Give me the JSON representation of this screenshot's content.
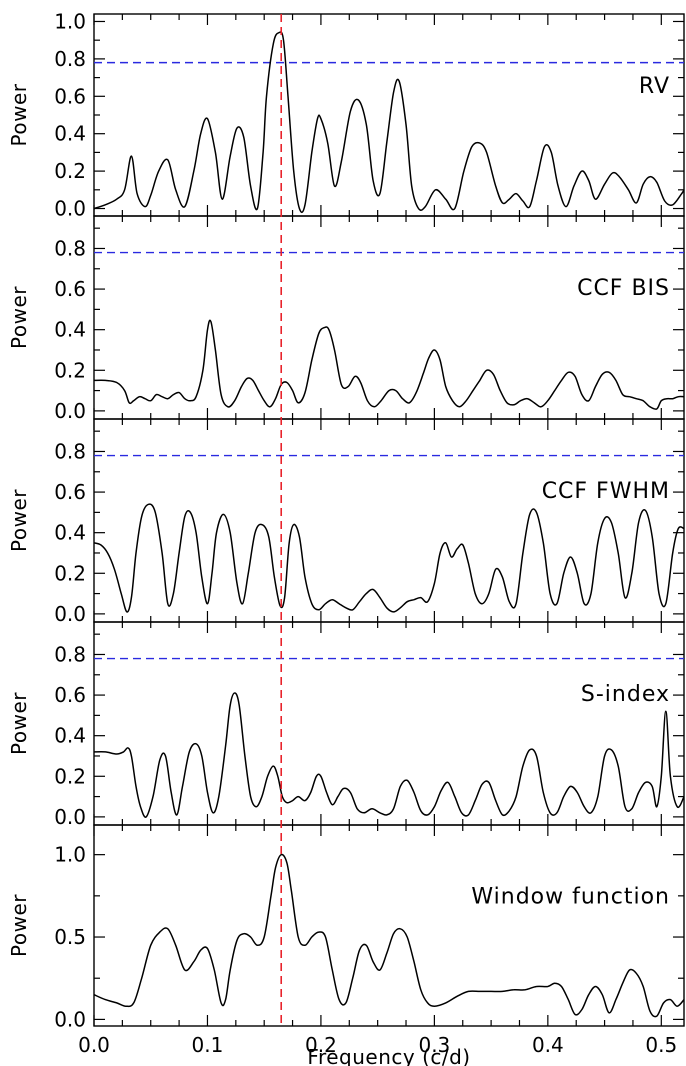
{
  "chart_data": {
    "type": "line",
    "xlabel": "Frequency (c/d)",
    "xlim": [
      0,
      0.52
    ],
    "x_ticks": [
      "0.0",
      "0.1",
      "0.2",
      "0.3",
      "0.4",
      "0.5"
    ],
    "x_tick_values": [
      0,
      0.1,
      0.2,
      0.3,
      0.4,
      0.5
    ],
    "reference_line_x": 0.165,
    "reference_line_color": "#e8232b",
    "threshold_color": "#2a2ae0",
    "line_color": "#000000",
    "panels": [
      {
        "label": "RV",
        "ylabel": "Power",
        "ylim": [
          -0.04,
          1.04
        ],
        "y_ticks": [
          "0.0",
          "0.2",
          "0.4",
          "0.6",
          "0.8",
          "1.0"
        ],
        "y_tick_values": [
          0,
          0.2,
          0.4,
          0.6,
          0.8,
          1.0
        ],
        "threshold": 0.78,
        "x": [
          0,
          0.01,
          0.02,
          0.027,
          0.033,
          0.038,
          0.045,
          0.05,
          0.057,
          0.065,
          0.072,
          0.08,
          0.088,
          0.094,
          0.1,
          0.107,
          0.113,
          0.12,
          0.126,
          0.132,
          0.138,
          0.144,
          0.149,
          0.152,
          0.158,
          0.163,
          0.167,
          0.171,
          0.176,
          0.181,
          0.186,
          0.192,
          0.197,
          0.2,
          0.206,
          0.212,
          0.218,
          0.226,
          0.233,
          0.24,
          0.246,
          0.252,
          0.258,
          0.264,
          0.269,
          0.275,
          0.28,
          0.286,
          0.292,
          0.301,
          0.31,
          0.318,
          0.326,
          0.333,
          0.34,
          0.346,
          0.354,
          0.36,
          0.366,
          0.372,
          0.378,
          0.384,
          0.39,
          0.397,
          0.403,
          0.409,
          0.416,
          0.423,
          0.43,
          0.436,
          0.442,
          0.45,
          0.457,
          0.463,
          0.471,
          0.478,
          0.484,
          0.49,
          0.496,
          0.503,
          0.51,
          0.518,
          0.52
        ],
        "y": [
          0.0,
          0.02,
          0.05,
          0.1,
          0.28,
          0.08,
          0.01,
          0.07,
          0.2,
          0.26,
          0.1,
          0.01,
          0.2,
          0.4,
          0.48,
          0.3,
          0.05,
          0.28,
          0.43,
          0.38,
          0.12,
          0.0,
          0.3,
          0.6,
          0.88,
          0.94,
          0.9,
          0.6,
          0.2,
          0.0,
          0.02,
          0.3,
          0.48,
          0.48,
          0.35,
          0.12,
          0.25,
          0.52,
          0.58,
          0.45,
          0.15,
          0.08,
          0.35,
          0.62,
          0.68,
          0.45,
          0.12,
          0.0,
          0.01,
          0.1,
          0.05,
          0.0,
          0.2,
          0.33,
          0.35,
          0.3,
          0.12,
          0.03,
          0.05,
          0.08,
          0.04,
          0.01,
          0.15,
          0.33,
          0.3,
          0.12,
          0.01,
          0.12,
          0.2,
          0.15,
          0.05,
          0.13,
          0.19,
          0.17,
          0.1,
          0.03,
          0.13,
          0.17,
          0.14,
          0.04,
          0.02,
          0.08,
          0.1
        ]
      },
      {
        "label": "CCF BIS",
        "ylabel": "Power",
        "ylim": [
          -0.04,
          0.96
        ],
        "y_ticks": [
          "0.0",
          "0.2",
          "0.4",
          "0.6",
          "0.8"
        ],
        "y_tick_values": [
          0,
          0.2,
          0.4,
          0.6,
          0.8
        ],
        "threshold": 0.78,
        "x": [
          0,
          0.01,
          0.02,
          0.027,
          0.031,
          0.035,
          0.04,
          0.045,
          0.05,
          0.055,
          0.06,
          0.065,
          0.07,
          0.075,
          0.08,
          0.085,
          0.09,
          0.096,
          0.1,
          0.103,
          0.107,
          0.112,
          0.118,
          0.124,
          0.13,
          0.135,
          0.14,
          0.145,
          0.15,
          0.155,
          0.16,
          0.165,
          0.17,
          0.175,
          0.18,
          0.186,
          0.192,
          0.198,
          0.203,
          0.207,
          0.212,
          0.218,
          0.224,
          0.23,
          0.235,
          0.241,
          0.247,
          0.253,
          0.26,
          0.266,
          0.272,
          0.278,
          0.284,
          0.29,
          0.295,
          0.3,
          0.305,
          0.31,
          0.316,
          0.322,
          0.328,
          0.334,
          0.34,
          0.346,
          0.352,
          0.358,
          0.364,
          0.37,
          0.376,
          0.382,
          0.388,
          0.394,
          0.4,
          0.406,
          0.412,
          0.418,
          0.424,
          0.43,
          0.436,
          0.442,
          0.448,
          0.454,
          0.46,
          0.466,
          0.472,
          0.478,
          0.484,
          0.49,
          0.496,
          0.5,
          0.505,
          0.51,
          0.515,
          0.52
        ],
        "y": [
          0.15,
          0.15,
          0.14,
          0.1,
          0.04,
          0.05,
          0.07,
          0.06,
          0.05,
          0.08,
          0.07,
          0.06,
          0.08,
          0.09,
          0.06,
          0.05,
          0.07,
          0.2,
          0.4,
          0.44,
          0.3,
          0.08,
          0.02,
          0.05,
          0.12,
          0.16,
          0.15,
          0.1,
          0.05,
          0.02,
          0.06,
          0.13,
          0.14,
          0.1,
          0.04,
          0.09,
          0.25,
          0.38,
          0.41,
          0.4,
          0.3,
          0.13,
          0.12,
          0.17,
          0.14,
          0.05,
          0.02,
          0.05,
          0.1,
          0.1,
          0.06,
          0.04,
          0.09,
          0.18,
          0.26,
          0.3,
          0.25,
          0.12,
          0.05,
          0.02,
          0.05,
          0.1,
          0.15,
          0.2,
          0.18,
          0.1,
          0.04,
          0.03,
          0.05,
          0.06,
          0.04,
          0.02,
          0.05,
          0.1,
          0.15,
          0.19,
          0.17,
          0.08,
          0.05,
          0.12,
          0.18,
          0.19,
          0.15,
          0.08,
          0.07,
          0.06,
          0.05,
          0.02,
          0.01,
          0.05,
          0.06,
          0.06,
          0.07,
          0.07
        ]
      },
      {
        "label": "CCF FWHM",
        "ylabel": "Power",
        "ylim": [
          -0.04,
          0.96
        ],
        "y_ticks": [
          "0.0",
          "0.2",
          "0.4",
          "0.6",
          "0.8"
        ],
        "y_tick_values": [
          0,
          0.2,
          0.4,
          0.6,
          0.8
        ],
        "threshold": 0.78,
        "x": [
          0,
          0.006,
          0.012,
          0.018,
          0.024,
          0.029,
          0.033,
          0.037,
          0.042,
          0.048,
          0.054,
          0.06,
          0.065,
          0.07,
          0.075,
          0.08,
          0.085,
          0.09,
          0.095,
          0.1,
          0.104,
          0.108,
          0.114,
          0.12,
          0.126,
          0.131,
          0.136,
          0.142,
          0.148,
          0.154,
          0.159,
          0.164,
          0.168,
          0.172,
          0.176,
          0.181,
          0.186,
          0.192,
          0.198,
          0.204,
          0.21,
          0.216,
          0.222,
          0.228,
          0.234,
          0.24,
          0.246,
          0.252,
          0.258,
          0.264,
          0.27,
          0.276,
          0.282,
          0.288,
          0.294,
          0.3,
          0.305,
          0.31,
          0.315,
          0.32,
          0.325,
          0.33,
          0.336,
          0.342,
          0.348,
          0.354,
          0.36,
          0.366,
          0.372,
          0.378,
          0.384,
          0.39,
          0.396,
          0.402,
          0.408,
          0.414,
          0.42,
          0.426,
          0.432,
          0.438,
          0.444,
          0.45,
          0.456,
          0.462,
          0.468,
          0.474,
          0.48,
          0.486,
          0.492,
          0.498,
          0.504,
          0.51,
          0.515,
          0.52
        ],
        "y": [
          0.35,
          0.34,
          0.3,
          0.22,
          0.1,
          0.01,
          0.08,
          0.3,
          0.48,
          0.54,
          0.5,
          0.3,
          0.05,
          0.1,
          0.3,
          0.48,
          0.5,
          0.4,
          0.18,
          0.05,
          0.2,
          0.4,
          0.49,
          0.4,
          0.15,
          0.05,
          0.2,
          0.4,
          0.44,
          0.38,
          0.18,
          0.04,
          0.08,
          0.35,
          0.44,
          0.38,
          0.18,
          0.05,
          0.02,
          0.05,
          0.07,
          0.05,
          0.03,
          0.02,
          0.06,
          0.1,
          0.12,
          0.08,
          0.03,
          0.01,
          0.03,
          0.06,
          0.07,
          0.08,
          0.06,
          0.15,
          0.3,
          0.35,
          0.28,
          0.32,
          0.34,
          0.25,
          0.1,
          0.05,
          0.1,
          0.22,
          0.18,
          0.06,
          0.05,
          0.3,
          0.49,
          0.5,
          0.35,
          0.1,
          0.05,
          0.2,
          0.28,
          0.2,
          0.05,
          0.1,
          0.35,
          0.47,
          0.45,
          0.3,
          0.08,
          0.2,
          0.45,
          0.51,
          0.38,
          0.1,
          0.05,
          0.3,
          0.42,
          0.42
        ]
      },
      {
        "label": "S-index",
        "ylabel": "Power",
        "ylim": [
          -0.04,
          0.96
        ],
        "y_ticks": [
          "0.0",
          "0.2",
          "0.4",
          "0.6",
          "0.8"
        ],
        "y_tick_values": [
          0,
          0.2,
          0.4,
          0.6,
          0.8
        ],
        "threshold": 0.78,
        "x": [
          0,
          0.01,
          0.02,
          0.026,
          0.03,
          0.033,
          0.037,
          0.041,
          0.046,
          0.052,
          0.058,
          0.063,
          0.068,
          0.073,
          0.078,
          0.084,
          0.09,
          0.095,
          0.1,
          0.105,
          0.11,
          0.116,
          0.12,
          0.124,
          0.128,
          0.133,
          0.138,
          0.143,
          0.148,
          0.153,
          0.158,
          0.162,
          0.166,
          0.17,
          0.175,
          0.18,
          0.186,
          0.191,
          0.196,
          0.2,
          0.205,
          0.21,
          0.215,
          0.22,
          0.226,
          0.232,
          0.238,
          0.245,
          0.252,
          0.258,
          0.264,
          0.27,
          0.276,
          0.282,
          0.288,
          0.294,
          0.3,
          0.306,
          0.312,
          0.318,
          0.324,
          0.33,
          0.336,
          0.342,
          0.348,
          0.354,
          0.36,
          0.366,
          0.372,
          0.378,
          0.384,
          0.39,
          0.396,
          0.402,
          0.408,
          0.414,
          0.42,
          0.426,
          0.432,
          0.438,
          0.444,
          0.45,
          0.456,
          0.462,
          0.468,
          0.474,
          0.48,
          0.486,
          0.492,
          0.496,
          0.5,
          0.504,
          0.508,
          0.514,
          0.52
        ],
        "y": [
          0.32,
          0.32,
          0.31,
          0.32,
          0.34,
          0.3,
          0.15,
          0.05,
          0.0,
          0.1,
          0.28,
          0.3,
          0.12,
          0.01,
          0.15,
          0.32,
          0.36,
          0.3,
          0.12,
          0.02,
          0.1,
          0.35,
          0.55,
          0.61,
          0.55,
          0.3,
          0.1,
          0.05,
          0.1,
          0.2,
          0.25,
          0.2,
          0.1,
          0.07,
          0.08,
          0.1,
          0.08,
          0.12,
          0.2,
          0.2,
          0.12,
          0.06,
          0.1,
          0.14,
          0.12,
          0.04,
          0.02,
          0.04,
          0.02,
          0.01,
          0.04,
          0.15,
          0.18,
          0.12,
          0.03,
          0.01,
          0.05,
          0.13,
          0.17,
          0.1,
          0.02,
          0.01,
          0.08,
          0.16,
          0.17,
          0.08,
          0.01,
          0.03,
          0.1,
          0.25,
          0.33,
          0.3,
          0.12,
          0.02,
          0.02,
          0.1,
          0.15,
          0.12,
          0.05,
          0.02,
          0.1,
          0.3,
          0.33,
          0.25,
          0.05,
          0.04,
          0.12,
          0.17,
          0.15,
          0.05,
          0.2,
          0.52,
          0.2,
          0.05,
          0.1
        ]
      },
      {
        "label": "Window function",
        "ylabel": "Power",
        "ylim": [
          -0.04,
          1.18
        ],
        "y_ticks": [
          "0.0",
          "0.5",
          "1.0"
        ],
        "y_tick_values": [
          0,
          0.5,
          1.0
        ],
        "x": [
          0,
          0.01,
          0.02,
          0.028,
          0.035,
          0.042,
          0.05,
          0.058,
          0.065,
          0.072,
          0.08,
          0.088,
          0.094,
          0.1,
          0.106,
          0.112,
          0.116,
          0.12,
          0.126,
          0.132,
          0.138,
          0.144,
          0.15,
          0.156,
          0.16,
          0.165,
          0.17,
          0.174,
          0.18,
          0.186,
          0.192,
          0.198,
          0.204,
          0.21,
          0.216,
          0.222,
          0.228,
          0.234,
          0.24,
          0.246,
          0.252,
          0.258,
          0.264,
          0.27,
          0.276,
          0.282,
          0.288,
          0.294,
          0.3,
          0.31,
          0.32,
          0.33,
          0.34,
          0.35,
          0.36,
          0.37,
          0.38,
          0.39,
          0.4,
          0.406,
          0.412,
          0.418,
          0.424,
          0.43,
          0.436,
          0.442,
          0.448,
          0.454,
          0.46,
          0.466,
          0.472,
          0.478,
          0.484,
          0.49,
          0.496,
          0.502,
          0.508,
          0.514,
          0.52
        ],
        "y": [
          0.15,
          0.12,
          0.1,
          0.08,
          0.1,
          0.25,
          0.45,
          0.53,
          0.55,
          0.45,
          0.3,
          0.35,
          0.42,
          0.43,
          0.3,
          0.1,
          0.12,
          0.3,
          0.48,
          0.52,
          0.5,
          0.45,
          0.5,
          0.75,
          0.92,
          1.0,
          0.95,
          0.78,
          0.5,
          0.45,
          0.5,
          0.53,
          0.5,
          0.3,
          0.12,
          0.1,
          0.25,
          0.42,
          0.45,
          0.35,
          0.3,
          0.4,
          0.52,
          0.55,
          0.5,
          0.35,
          0.18,
          0.1,
          0.08,
          0.1,
          0.14,
          0.17,
          0.17,
          0.17,
          0.17,
          0.18,
          0.18,
          0.2,
          0.2,
          0.22,
          0.2,
          0.12,
          0.03,
          0.06,
          0.15,
          0.2,
          0.15,
          0.04,
          0.12,
          0.22,
          0.3,
          0.28,
          0.2,
          0.05,
          0.02,
          0.1,
          0.12,
          0.08,
          0.12
        ]
      }
    ]
  }
}
